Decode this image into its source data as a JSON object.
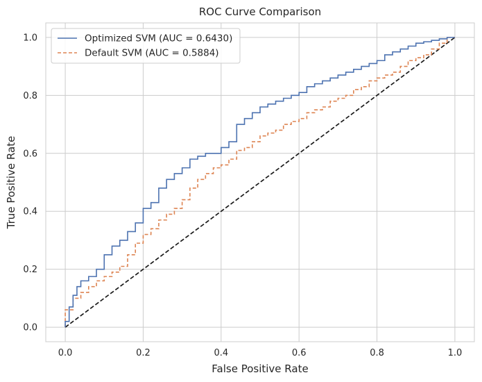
{
  "chart_data": {
    "type": "line",
    "title": "ROC Curve Comparison",
    "xlabel": "False Positive Rate",
    "ylabel": "True Positive Rate",
    "xlim": [
      -0.05,
      1.05
    ],
    "ylim": [
      -0.05,
      1.05
    ],
    "xticks": [
      "0.0",
      "0.2",
      "0.4",
      "0.6",
      "0.8",
      "1.0"
    ],
    "yticks": [
      "0.0",
      "0.2",
      "0.4",
      "0.6",
      "0.8",
      "1.0"
    ],
    "grid": true,
    "legend_position": "top-left",
    "series": [
      {
        "name": "Optimized SVM (AUC = 0.6430)",
        "color": "#4c72b0",
        "dash": "solid",
        "x": [
          0.0,
          0.01,
          0.02,
          0.03,
          0.04,
          0.06,
          0.08,
          0.1,
          0.12,
          0.14,
          0.16,
          0.18,
          0.2,
          0.22,
          0.24,
          0.26,
          0.28,
          0.3,
          0.32,
          0.34,
          0.36,
          0.38,
          0.4,
          0.42,
          0.44,
          0.46,
          0.48,
          0.5,
          0.52,
          0.54,
          0.56,
          0.58,
          0.6,
          0.62,
          0.64,
          0.66,
          0.68,
          0.7,
          0.72,
          0.74,
          0.76,
          0.78,
          0.8,
          0.82,
          0.84,
          0.86,
          0.88,
          0.9,
          0.92,
          0.94,
          0.96,
          0.98,
          1.0
        ],
        "y": [
          0.0,
          0.02,
          0.07,
          0.11,
          0.14,
          0.16,
          0.175,
          0.2,
          0.25,
          0.28,
          0.3,
          0.33,
          0.36,
          0.41,
          0.43,
          0.48,
          0.51,
          0.53,
          0.55,
          0.58,
          0.59,
          0.6,
          0.6,
          0.62,
          0.64,
          0.7,
          0.72,
          0.74,
          0.76,
          0.77,
          0.78,
          0.79,
          0.8,
          0.81,
          0.83,
          0.84,
          0.85,
          0.86,
          0.87,
          0.88,
          0.89,
          0.9,
          0.91,
          0.92,
          0.94,
          0.95,
          0.96,
          0.97,
          0.98,
          0.985,
          0.99,
          0.995,
          1.0
        ]
      },
      {
        "name": "Default SVM (AUC = 0.5884)",
        "color": "#dd8452",
        "dash": "dashed",
        "x": [
          0.0,
          0.02,
          0.04,
          0.06,
          0.08,
          0.1,
          0.12,
          0.14,
          0.16,
          0.18,
          0.2,
          0.22,
          0.24,
          0.26,
          0.28,
          0.3,
          0.32,
          0.34,
          0.36,
          0.38,
          0.4,
          0.42,
          0.44,
          0.46,
          0.48,
          0.5,
          0.52,
          0.54,
          0.56,
          0.58,
          0.6,
          0.62,
          0.64,
          0.66,
          0.68,
          0.7,
          0.72,
          0.74,
          0.76,
          0.78,
          0.8,
          0.82,
          0.84,
          0.86,
          0.88,
          0.9,
          0.92,
          0.94,
          0.96,
          0.98,
          1.0
        ],
        "y": [
          0.0,
          0.06,
          0.1,
          0.12,
          0.14,
          0.16,
          0.175,
          0.19,
          0.21,
          0.25,
          0.29,
          0.32,
          0.34,
          0.37,
          0.39,
          0.41,
          0.44,
          0.48,
          0.51,
          0.53,
          0.55,
          0.56,
          0.58,
          0.61,
          0.62,
          0.64,
          0.66,
          0.67,
          0.68,
          0.7,
          0.71,
          0.72,
          0.74,
          0.75,
          0.76,
          0.78,
          0.79,
          0.8,
          0.82,
          0.83,
          0.85,
          0.86,
          0.87,
          0.88,
          0.9,
          0.92,
          0.93,
          0.94,
          0.96,
          0.98,
          1.0
        ]
      },
      {
        "name": "",
        "color": "#1a1a1a",
        "dash": "dashed",
        "x": [
          0.0,
          1.0
        ],
        "y": [
          0.0,
          1.0
        ]
      }
    ]
  }
}
